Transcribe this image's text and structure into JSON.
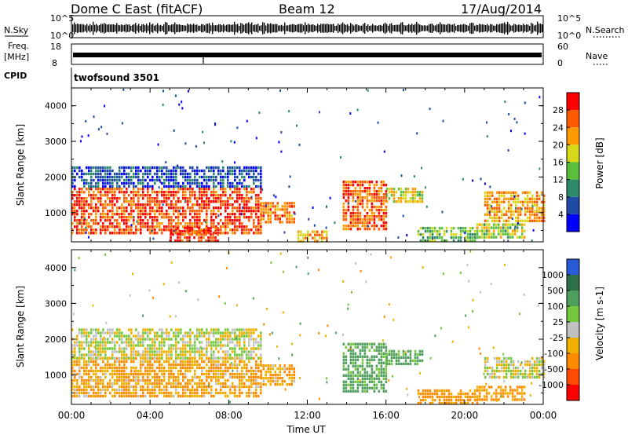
{
  "header": {
    "station": "Dome C East (fitACF)",
    "beam": "Beam 12",
    "date": "17/Aug/2014"
  },
  "sky_panel": {
    "left_label": "N.Sky",
    "right_label": "N.Search",
    "left_top_tick": "10^5",
    "left_bottom_tick": "10^0",
    "right_top_tick": "10^5",
    "right_bottom_tick": "10^0"
  },
  "freq_panel": {
    "left_label_line1": "Freq.",
    "left_label_line2": "[MHz]",
    "right_label": "Nave",
    "left_top_tick": "18",
    "left_bottom_tick": "8",
    "right_top_tick": "60",
    "right_bottom_tick": "0"
  },
  "cpid": {
    "label": "CPID",
    "program": "twofsound 3501"
  },
  "colors": {
    "power_scale": [
      "#0000ff",
      "#1f4aa6",
      "#2e8a6a",
      "#5cbf3c",
      "#d6d81a",
      "#ff9a00",
      "#ff5a00",
      "#ff0000"
    ],
    "velocity_scale": [
      "#2a5bd6",
      "#2e6f4a",
      "#4f9e5e",
      "#73c83c",
      "#c0c0c0",
      "#f0b000",
      "#ff8a00",
      "#ff4a00",
      "#ff0000"
    ]
  },
  "chart_data": [
    {
      "type": "heatmap",
      "title": "",
      "quantity": "Power",
      "ylabel": "Slant Range [km]",
      "xlabel": "",
      "yticks": [
        "1000",
        "2000",
        "3000",
        "4000"
      ],
      "ylim": [
        180,
        4500
      ],
      "xlim": [
        0,
        24
      ],
      "colorbar": {
        "label": "Power [dB]",
        "ticks": [
          "4",
          "8",
          "12",
          "16",
          "20",
          "24",
          "28"
        ],
        "range": [
          0,
          32
        ]
      },
      "echo_regions": [
        {
          "t0": 0.0,
          "t1": 9.6,
          "r0": 400,
          "r1": 1700,
          "level": 27
        },
        {
          "t0": 0.0,
          "t1": 9.6,
          "r0": 1700,
          "r1": 2300,
          "level": 6
        },
        {
          "t0": 5.0,
          "t1": 7.5,
          "r0": 200,
          "r1": 600,
          "level": 28
        },
        {
          "t0": 9.6,
          "t1": 11.3,
          "r0": 700,
          "r1": 1300,
          "level": 24
        },
        {
          "t0": 11.5,
          "t1": 13.0,
          "r0": 200,
          "r1": 500,
          "level": 22
        },
        {
          "t0": 13.8,
          "t1": 16.0,
          "r0": 500,
          "r1": 1900,
          "level": 26
        },
        {
          "t0": 16.0,
          "t1": 17.8,
          "r0": 1300,
          "r1": 1700,
          "level": 18
        },
        {
          "t0": 17.6,
          "t1": 20.6,
          "r0": 200,
          "r1": 600,
          "level": 14
        },
        {
          "t0": 21.0,
          "t1": 24.0,
          "r0": 800,
          "r1": 1600,
          "level": 22
        },
        {
          "t0": 20.6,
          "t1": 23.0,
          "r0": 300,
          "r1": 700,
          "level": 16
        }
      ]
    },
    {
      "type": "heatmap",
      "title": "",
      "quantity": "Velocity",
      "ylabel": "Slant Range [km]",
      "xlabel": "Time UT",
      "xticks": [
        "00:00",
        "04:00",
        "08:00",
        "12:00",
        "16:00",
        "20:00",
        "00:00"
      ],
      "yticks": [
        "1000",
        "2000",
        "3000",
        "4000"
      ],
      "ylim": [
        180,
        4500
      ],
      "xlim": [
        0,
        24
      ],
      "colorbar": {
        "label": "Velocity [m s-1]",
        "ticks": [
          "1000",
          "500",
          "100",
          "25",
          "-25",
          "-100",
          "-500",
          "-1000"
        ]
      },
      "echo_regions": [
        {
          "t0": 0.0,
          "t1": 9.6,
          "r0": 400,
          "r1": 1500,
          "velocity": -100
        },
        {
          "t0": 0.0,
          "t1": 9.6,
          "r0": 1500,
          "r1": 2300,
          "velocity": 0
        },
        {
          "t0": 9.6,
          "t1": 11.3,
          "r0": 700,
          "r1": 1300,
          "velocity": -100
        },
        {
          "t0": 13.8,
          "t1": 16.0,
          "r0": 500,
          "r1": 1900,
          "velocity": 150
        },
        {
          "t0": 16.0,
          "t1": 17.8,
          "r0": 1300,
          "r1": 1700,
          "velocity": 150
        },
        {
          "t0": 17.6,
          "t1": 20.6,
          "r0": 200,
          "r1": 600,
          "velocity": -150
        },
        {
          "t0": 21.0,
          "t1": 24.0,
          "r0": 900,
          "r1": 1500,
          "velocity": 0
        },
        {
          "t0": 20.6,
          "t1": 23.0,
          "r0": 300,
          "r1": 700,
          "velocity": -120
        }
      ]
    }
  ]
}
